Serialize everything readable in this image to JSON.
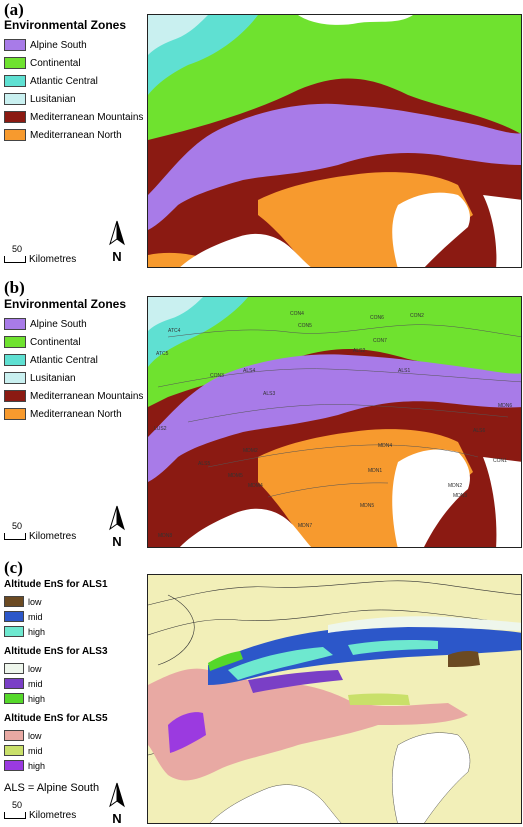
{
  "panels": {
    "a": {
      "label": "(a)",
      "legend_title": "Environmental Zones",
      "legend": [
        {
          "name": "Alpine South",
          "color": "#a87be8"
        },
        {
          "name": "Continental",
          "color": "#6fe22f"
        },
        {
          "name": "Atlantic Central",
          "color": "#5fe0d2"
        },
        {
          "name": "Lusitanian",
          "color": "#c9f0f0"
        },
        {
          "name": "Mediterranean Mountains",
          "color": "#8b1a12"
        },
        {
          "name": "Mediterranean North",
          "color": "#f79a2e"
        }
      ],
      "scale_value": "50",
      "scale_unit": "Kilometres",
      "north": "N"
    },
    "b": {
      "label": "(b)",
      "legend_title": "Environmental Zones",
      "legend": [
        {
          "name": "Alpine South",
          "color": "#a87be8"
        },
        {
          "name": "Continental",
          "color": "#6fe22f"
        },
        {
          "name": "Atlantic Central",
          "color": "#5fe0d2"
        },
        {
          "name": "Lusitanian",
          "color": "#c9f0f0"
        },
        {
          "name": "Mediterranean Mountains",
          "color": "#8b1a12"
        },
        {
          "name": "Mediterranean North",
          "color": "#f79a2e"
        }
      ],
      "zone_labels": [
        "ATC4",
        "ATC5",
        "CON4",
        "CON5",
        "CON6",
        "CON7",
        "CON2",
        "CON3",
        "ALS1",
        "ALS2",
        "ALS3",
        "ALS4",
        "ALS5",
        "LUS2",
        "MDM2",
        "MDM4",
        "MDN1",
        "MDN2",
        "MDN3",
        "MDN4",
        "MDN5",
        "MDN6",
        "MDN7",
        "MDN8",
        "MDM5",
        "CON1",
        "ALS6"
      ],
      "scale_value": "50",
      "scale_unit": "Kilometres",
      "north": "N"
    },
    "c": {
      "label": "(c)",
      "groups": [
        {
          "title": "Altitude EnS for ALS1",
          "items": [
            {
              "name": "low",
              "color": "#6b4a22"
            },
            {
              "name": "mid",
              "color": "#2c57c9"
            },
            {
              "name": "high",
              "color": "#6ee8cf"
            }
          ]
        },
        {
          "title": "Altitude EnS for ALS3",
          "items": [
            {
              "name": "low",
              "color": "#eef6ec"
            },
            {
              "name": "mid",
              "color": "#7a3fc6"
            },
            {
              "name": "high",
              "color": "#55d82a"
            }
          ]
        },
        {
          "title": "Altitude EnS for ALS5",
          "items": [
            {
              "name": "low",
              "color": "#e8a9a3"
            },
            {
              "name": "mid",
              "color": "#c9e06a"
            },
            {
              "name": "high",
              "color": "#9b3ae0"
            }
          ]
        }
      ],
      "note": "ALS = Alpine South",
      "scale_value": "50",
      "scale_unit": "Kilometres",
      "north": "N",
      "background_color": "#f2efb8"
    }
  }
}
